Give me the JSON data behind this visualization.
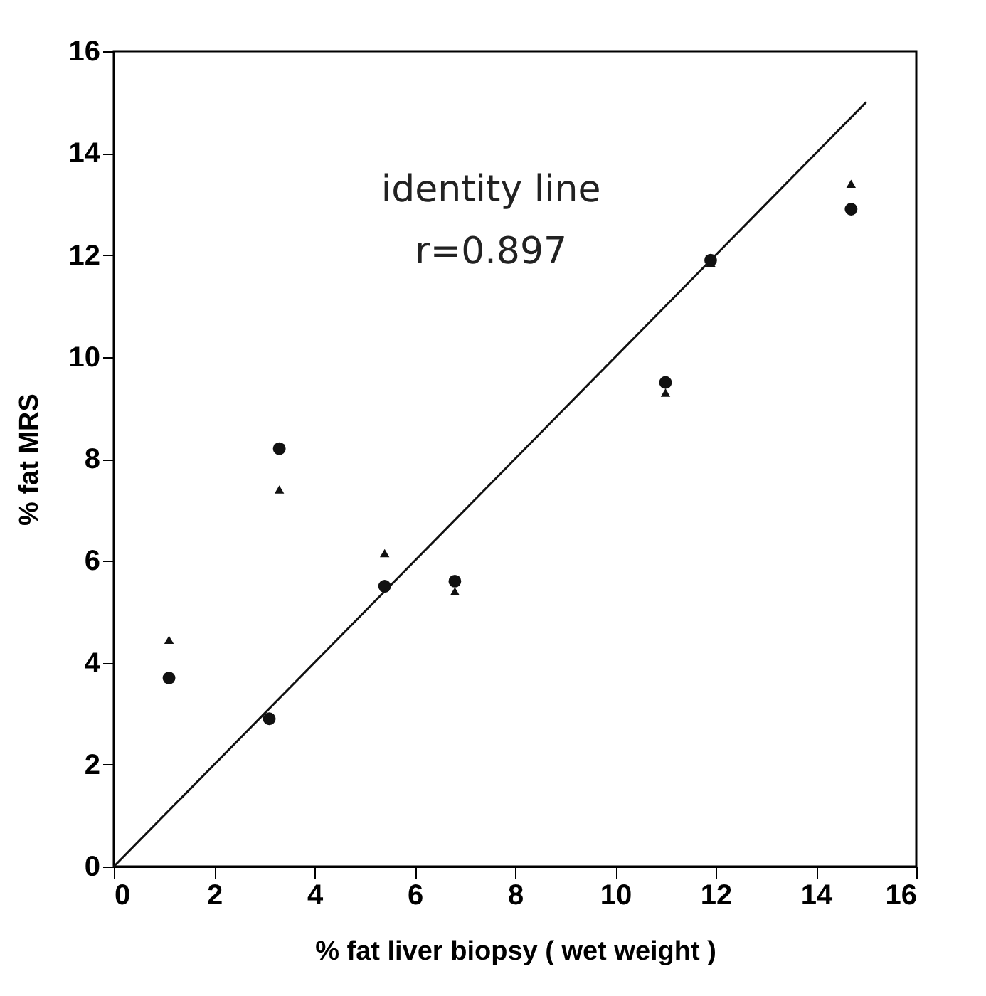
{
  "chart_data": {
    "type": "scatter",
    "xlabel": "% fat liver biopsy ( wet weight )",
    "ylabel": "% fat MRS",
    "annotations": [
      "identity line",
      "r=0.897"
    ],
    "xlim": [
      0,
      16
    ],
    "ylim": [
      0,
      16
    ],
    "xticks": [
      0,
      2,
      4,
      6,
      8,
      10,
      12,
      14,
      16
    ],
    "yticks": [
      0,
      2,
      4,
      6,
      8,
      10,
      12,
      14,
      16
    ],
    "grid": false,
    "series": [
      {
        "marker": "circle",
        "color": "#111111",
        "x": [
          1.1,
          3.1,
          3.3,
          5.4,
          6.8,
          11.0,
          11.9,
          14.7
        ],
        "values": [
          3.7,
          2.9,
          8.2,
          5.5,
          5.6,
          9.5,
          11.9,
          12.9
        ]
      },
      {
        "marker": "triangle",
        "color": "#111111",
        "x": [
          1.1,
          3.1,
          3.3,
          5.4,
          6.8,
          11.0,
          11.9,
          14.7
        ],
        "values": [
          4.45,
          null,
          7.4,
          6.15,
          5.4,
          9.3,
          11.85,
          13.4
        ]
      },
      {
        "type": "line",
        "marker": "none",
        "line_style": "solid",
        "color": "#111111",
        "x": [
          0,
          15
        ],
        "values": [
          0,
          15
        ]
      }
    ]
  }
}
